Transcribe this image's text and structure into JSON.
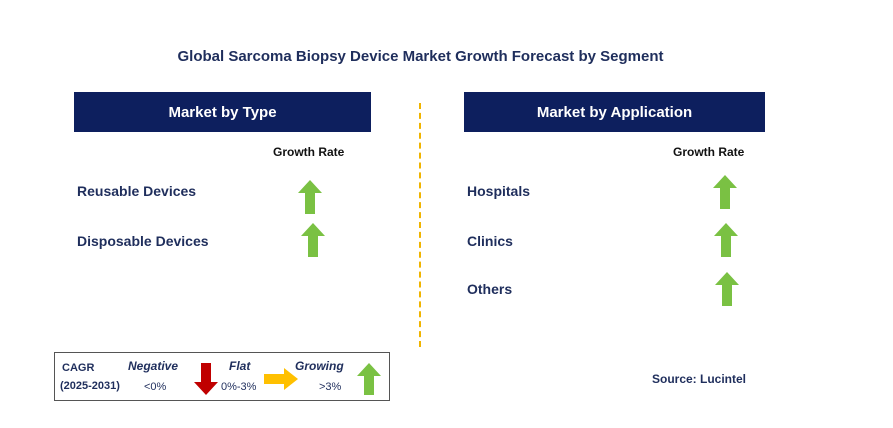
{
  "chart_data": {
    "type": "table",
    "title": "Global Sarcoma Biopsy Device Market Growth Forecast by Segment",
    "panels": [
      {
        "header": "Market by Type",
        "column_header": "Growth Rate",
        "rows": [
          {
            "label": "Reusable Devices",
            "growth": "growing"
          },
          {
            "label": "Disposable Devices",
            "growth": "growing"
          }
        ]
      },
      {
        "header": "Market by Application",
        "column_header": "Growth Rate",
        "rows": [
          {
            "label": "Hospitals",
            "growth": "growing"
          },
          {
            "label": "Clinics",
            "growth": "growing"
          },
          {
            "label": "Others",
            "growth": "growing"
          }
        ]
      }
    ],
    "legend": {
      "cagr_label": "CAGR",
      "period": "(2025-2031)",
      "categories": [
        {
          "name": "Negative",
          "range": "<0%",
          "icon": "down-arrow-icon",
          "color": "#c00000"
        },
        {
          "name": "Flat",
          "range": "0%-3%",
          "icon": "right-arrow-icon",
          "color": "#ffc000"
        },
        {
          "name": "Growing",
          "range": ">3%",
          "icon": "up-arrow-icon",
          "color": "#7ac143"
        }
      ]
    },
    "source": "Source: Lucintel"
  },
  "colors": {
    "header_bg": "#0d1f5e",
    "text": "#1f2e5c",
    "growing": "#7ac143",
    "flat": "#ffc000",
    "negative": "#c00000",
    "divider": "#f0b400"
  }
}
